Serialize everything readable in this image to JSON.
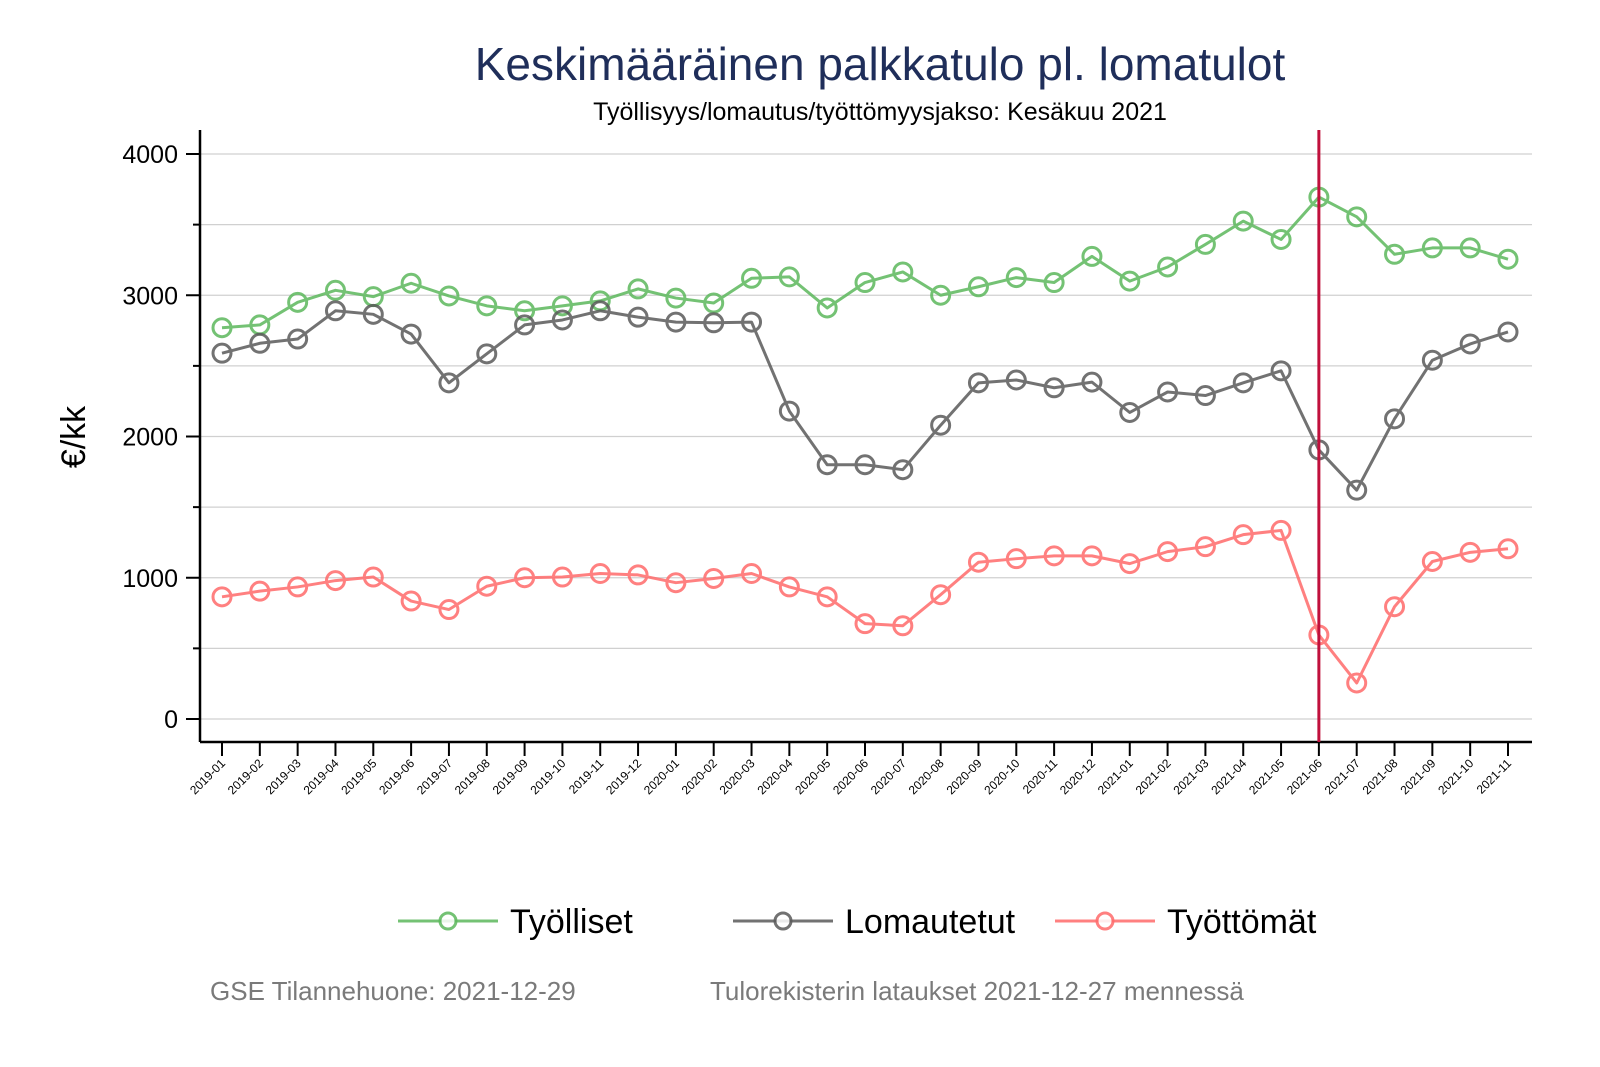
{
  "chart_data": {
    "type": "line",
    "title": "Keskimääräinen palkkatulo pl. lomatulot",
    "subtitle": "Työllisyys/lomautus/työttömyysjakso: Kesäkuu 2021",
    "xlabel": "",
    "ylabel": "€/kk",
    "ylim": [
      -150,
      4150
    ],
    "yticks": [
      0,
      1000,
      2000,
      3000,
      4000
    ],
    "yticks_minor": [
      500,
      1500,
      2500,
      3500
    ],
    "grid": true,
    "legend_position": "bottom",
    "reference_line": {
      "x": "2021-06",
      "color": "#c0103c"
    },
    "categories": [
      "2019-01",
      "2019-02",
      "2019-03",
      "2019-04",
      "2019-05",
      "2019-06",
      "2019-07",
      "2019-08",
      "2019-09",
      "2019-10",
      "2019-11",
      "2019-12",
      "2020-01",
      "2020-02",
      "2020-03",
      "2020-04",
      "2020-05",
      "2020-06",
      "2020-07",
      "2020-08",
      "2020-09",
      "2020-10",
      "2020-11",
      "2020-12",
      "2021-01",
      "2021-02",
      "2021-03",
      "2021-04",
      "2021-05",
      "2021-06",
      "2021-07",
      "2021-08",
      "2021-09",
      "2021-10",
      "2021-11"
    ],
    "series": [
      {
        "name": "Työlliset",
        "color": "#5cb85c",
        "values": [
          2770,
          2790,
          2950,
          3035,
          2990,
          3085,
          2995,
          2925,
          2890,
          2925,
          2960,
          3045,
          2980,
          2945,
          3120,
          3130,
          2910,
          3090,
          3165,
          3000,
          3060,
          3125,
          3090,
          3275,
          3100,
          3200,
          3360,
          3525,
          3395,
          3695,
          3555,
          3290,
          3335,
          3335,
          3255
        ]
      },
      {
        "name": "Lomautetut",
        "color": "#5a5a5a",
        "values": [
          2590,
          2660,
          2690,
          2890,
          2865,
          2725,
          2380,
          2585,
          2790,
          2825,
          2890,
          2845,
          2810,
          2805,
          2810,
          2180,
          1800,
          1800,
          1765,
          2080,
          2380,
          2400,
          2345,
          2385,
          2170,
          2315,
          2290,
          2380,
          2465,
          1905,
          1620,
          2125,
          2540,
          2655,
          2740
        ]
      },
      {
        "name": "Työttömät",
        "color": "#ff6b6b",
        "values": [
          865,
          905,
          935,
          980,
          1005,
          835,
          775,
          940,
          1000,
          1005,
          1030,
          1020,
          965,
          995,
          1030,
          935,
          865,
          675,
          660,
          880,
          1110,
          1135,
          1155,
          1155,
          1100,
          1185,
          1220,
          1305,
          1335,
          595,
          255,
          795,
          1115,
          1180,
          1205
        ]
      }
    ]
  },
  "footer": {
    "left": "GSE Tilannehuone: 2021-12-29",
    "right": "Tulorekisterin lataukset 2021-12-27 mennessä"
  }
}
